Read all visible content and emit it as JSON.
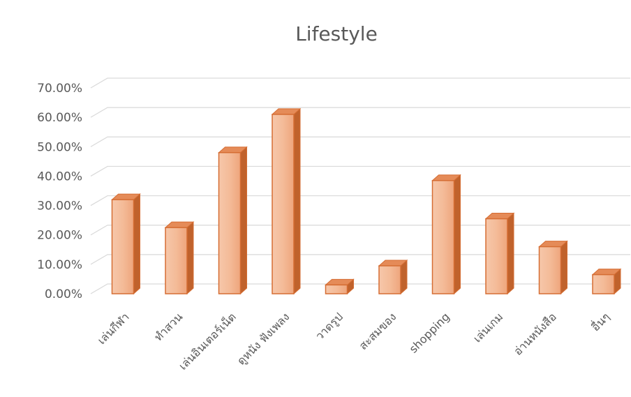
{
  "chart_data": {
    "type": "bar",
    "title": "Lifestyle",
    "categories": [
      "เล่นกีฬา",
      "ทำสวน",
      "เล่นอินเตอร์เน็ต",
      "ดูหนัง ฟังเพลง",
      "วาดรูป",
      "สะสมของ",
      "shopping",
      "เล่นเกม",
      "อ่านหนังสือ",
      "อื่นๆ"
    ],
    "values": [
      32,
      22.5,
      48,
      61,
      3,
      9.5,
      38.5,
      25.5,
      16,
      6.5
    ],
    "ylim": [
      0,
      70
    ],
    "yticks": [
      "0.00%",
      "10.00%",
      "20.00%",
      "30.00%",
      "40.00%",
      "50.00%",
      "60.00%",
      "70.00%"
    ],
    "xlabel": "",
    "ylabel": "",
    "grid": true,
    "bar_style": "3d-column",
    "colors": {
      "bar_front": "#f2b48f",
      "bar_front_light": "#f7cdb3",
      "bar_side": "#c0622c",
      "bar_top": "#e58b58",
      "bar_outline": "#d56d33"
    }
  }
}
